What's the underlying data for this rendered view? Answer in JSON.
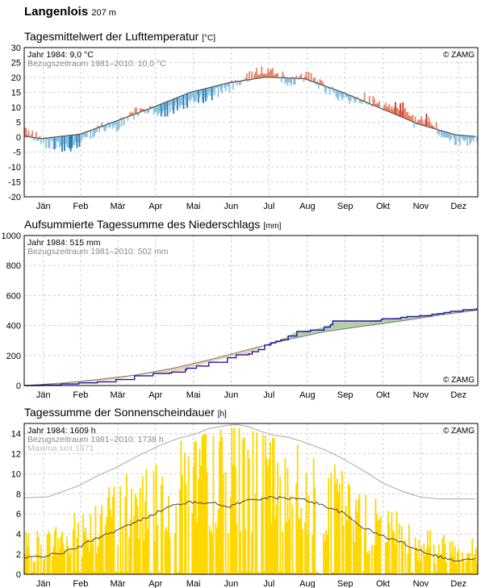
{
  "station": {
    "name": "Langenlois",
    "altitude": "207 m"
  },
  "months": [
    "Jän",
    "Feb",
    "Mär",
    "Apr",
    "Mai",
    "Jun",
    "Jul",
    "Aug",
    "Sep",
    "Okt",
    "Nov",
    "Dez"
  ],
  "copyright": "© ZAMG",
  "colors": {
    "warm": "#e8876a",
    "warm_strong": "#c0392b",
    "cold": "#8ec3e0",
    "cold_strong": "#2b7bba",
    "sun_bar": "#ffd700",
    "precip_year": "#1a1aa8",
    "grid": "#d0d0d0"
  },
  "chart_data": [
    {
      "type": "bar",
      "title": "Tagesmittelwert der Lufttemperatur",
      "unit": "[°C]",
      "ylim": [
        -20,
        30
      ],
      "yticks": [
        -20,
        -15,
        -10,
        -5,
        0,
        5,
        10,
        15,
        20,
        25,
        30
      ],
      "grid": true,
      "legend": [
        "Jahr 1984: 9,0 °C",
        "Bezugszeitraum 1981–2010: 10,0 °C"
      ],
      "reference_normal": {
        "name": "Bezugszeitraum 1981–2010",
        "day_of_year": [
          1,
          15,
          46,
          74,
          105,
          135,
          166,
          196,
          227,
          258,
          288,
          319,
          349,
          366
        ],
        "values": [
          0.3,
          -0.5,
          1.0,
          5.2,
          10.0,
          15.0,
          18.2,
          20.1,
          19.6,
          15.0,
          9.8,
          4.4,
          0.8,
          0.2
        ]
      },
      "year_anomaly_1984_approx": {
        "name": "Jahr 1984",
        "day_of_year": [
          1,
          15,
          35,
          46,
          60,
          75,
          95,
          110,
          130,
          150,
          165,
          175,
          185,
          195,
          205,
          215,
          230,
          245,
          258,
          275,
          290,
          305,
          315,
          325,
          335,
          345,
          360,
          366
        ],
        "values": [
          3,
          -1,
          -4,
          -3,
          0,
          -1.5,
          1,
          -3,
          -3,
          -3,
          -1.5,
          0.5,
          1.5,
          3,
          1,
          -1,
          1,
          -1,
          -2,
          1,
          1,
          3.5,
          0,
          3,
          0,
          -2,
          -1.5,
          -2
        ]
      }
    },
    {
      "type": "line",
      "title": "Aufsummierte Tagessumme des Niederschlags",
      "unit": "[mm]",
      "ylim": [
        0,
        1000
      ],
      "yticks": [
        0,
        200,
        400,
        600,
        800,
        1000
      ],
      "grid": true,
      "legend": [
        "Jahr 1984: 515 mm",
        "Bezugszeitraum 1981–2010: 502 mm"
      ],
      "series": [
        {
          "name": "Jahr 1984",
          "x": [
            1,
            15,
            31,
            45,
            60,
            75,
            90,
            105,
            118,
            120,
            131,
            132,
            140,
            150,
            165,
            172,
            182,
            185,
            190,
            195,
            200,
            204,
            208,
            214,
            221,
            232,
            243,
            248,
            250,
            278,
            289,
            290,
            305,
            310,
            320,
            330,
            335,
            340,
            345,
            355,
            366
          ],
          "y": [
            0,
            4,
            10,
            18,
            25,
            40,
            65,
            80,
            82,
            90,
            105,
            115,
            130,
            155,
            185,
            205,
            210,
            225,
            240,
            270,
            285,
            295,
            305,
            330,
            360,
            370,
            390,
            405,
            430,
            430,
            440,
            445,
            455,
            460,
            465,
            475,
            480,
            487,
            495,
            505,
            515
          ]
        },
        {
          "name": "Bezugszeitraum 1981–2010",
          "x": [
            1,
            31,
            60,
            91,
            121,
            152,
            182,
            213,
            244,
            274,
            305,
            335,
            366
          ],
          "y": [
            0,
            16,
            40,
            70,
            115,
            175,
            240,
            305,
            360,
            395,
            430,
            468,
            502
          ]
        }
      ]
    },
    {
      "type": "bar",
      "title": "Tagessumme der Sonnenscheindauer",
      "unit": "[h]",
      "ylim": [
        0,
        15
      ],
      "yticks": [
        0,
        2,
        4,
        6,
        8,
        10,
        12,
        14
      ],
      "grid": true,
      "legend": [
        "Jahr 1984: 1609 h",
        "Bezugszeitraum 1981–2010: 1738 h",
        "Maxima seit 1971"
      ],
      "maxima_line": {
        "name": "Maxima seit 1971",
        "day_of_year": [
          1,
          20,
          45,
          60,
          75,
          90,
          110,
          125,
          140,
          150,
          165,
          172,
          182,
          190,
          200,
          215,
          230,
          245,
          258,
          275,
          290,
          305,
          320,
          335,
          345,
          366
        ],
        "values": [
          7.6,
          7.7,
          8.8,
          9.8,
          10.6,
          11.6,
          12.8,
          13.5,
          14.0,
          14.5,
          14.8,
          14.9,
          14.7,
          14.3,
          13.9,
          13.6,
          13.0,
          12.3,
          11.5,
          10.3,
          9.1,
          8.3,
          7.7,
          7.5,
          7.5,
          7.5
        ]
      },
      "reference_line": {
        "name": "Bezugszeitraum 1981–2010",
        "day_of_year": [
          1,
          15,
          31,
          45,
          59,
          74,
          90,
          105,
          120,
          130,
          150,
          165,
          182,
          197,
          213,
          228,
          244,
          258,
          274,
          290,
          305,
          320,
          335,
          350,
          366
        ],
        "values": [
          1.6,
          1.8,
          2.1,
          2.7,
          3.6,
          4.3,
          5.1,
          6.0,
          6.8,
          7.1,
          7.2,
          6.7,
          7.4,
          7.6,
          7.6,
          7.4,
          6.8,
          6.1,
          4.7,
          3.8,
          3.2,
          2.4,
          1.8,
          1.3,
          1.6
        ]
      },
      "daily_sunshine_1984_envelope": {
        "name": "Jahr 1984",
        "day_of_year": [
          1,
          31,
          60,
          91,
          121,
          152,
          182,
          213,
          244,
          274,
          305,
          335,
          366
        ],
        "values": [
          3.5,
          4.5,
          7.0,
          9.5,
          11.5,
          13.0,
          13.5,
          12.5,
          10.0,
          7.0,
          5.0,
          3.5,
          3.0
        ]
      }
    }
  ]
}
